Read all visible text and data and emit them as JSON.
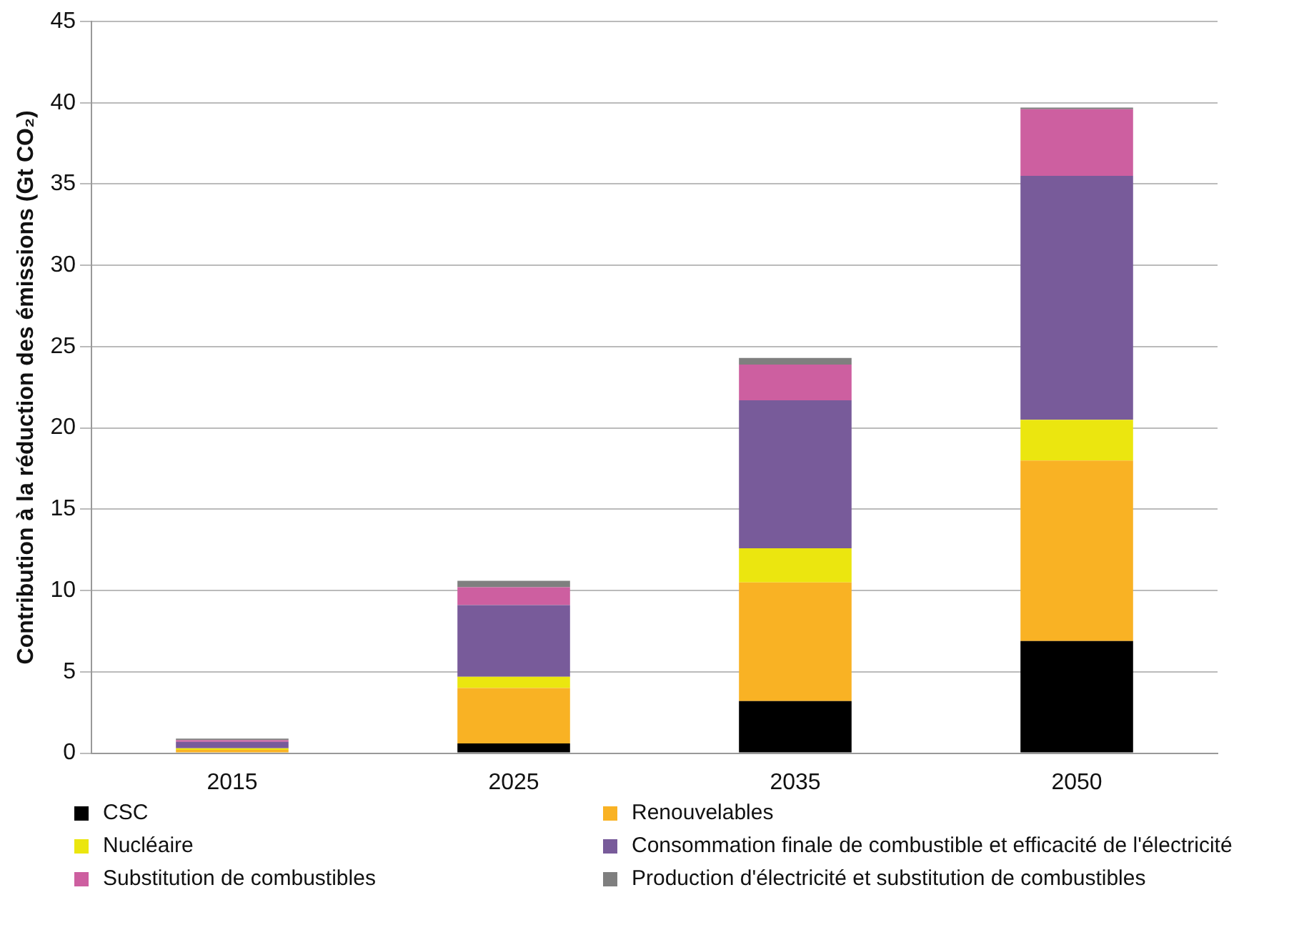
{
  "chart_data": {
    "type": "bar",
    "stacked": true,
    "ylabel": "Contribution à la réduction des émissions (Gt CO₂)",
    "categories": [
      "2015",
      "2025",
      "2035",
      "2050"
    ],
    "series": [
      {
        "name": "CSC",
        "color": "#000000",
        "values": [
          0,
          0.6,
          3.2,
          6.9
        ]
      },
      {
        "name": "Renouvelables",
        "color": "#f9b224",
        "values": [
          0.2,
          3.4,
          7.3,
          11.1
        ]
      },
      {
        "name": "Nucléaire",
        "color": "#ebe60f",
        "values": [
          0.1,
          0.7,
          2.1,
          2.5
        ]
      },
      {
        "name": "Consommation finale de combustible et efficacité de l'électricité",
        "color": "#785b9a",
        "values": [
          0.4,
          4.4,
          9.1,
          15.0
        ]
      },
      {
        "name": "Substitution de combustibles",
        "color": "#cd5fa0",
        "values": [
          0.1,
          1.1,
          2.2,
          4.1
        ]
      },
      {
        "name": "Production d'électricité et substitution de combustibles",
        "color": "#7f7f7f",
        "values": [
          0.1,
          0.4,
          0.4,
          0.1
        ]
      }
    ],
    "ylim": [
      0,
      45
    ],
    "yticks": [
      0,
      5,
      10,
      15,
      20,
      25,
      30,
      35,
      40,
      45
    ],
    "grid": "y",
    "legend": "bottom"
  }
}
